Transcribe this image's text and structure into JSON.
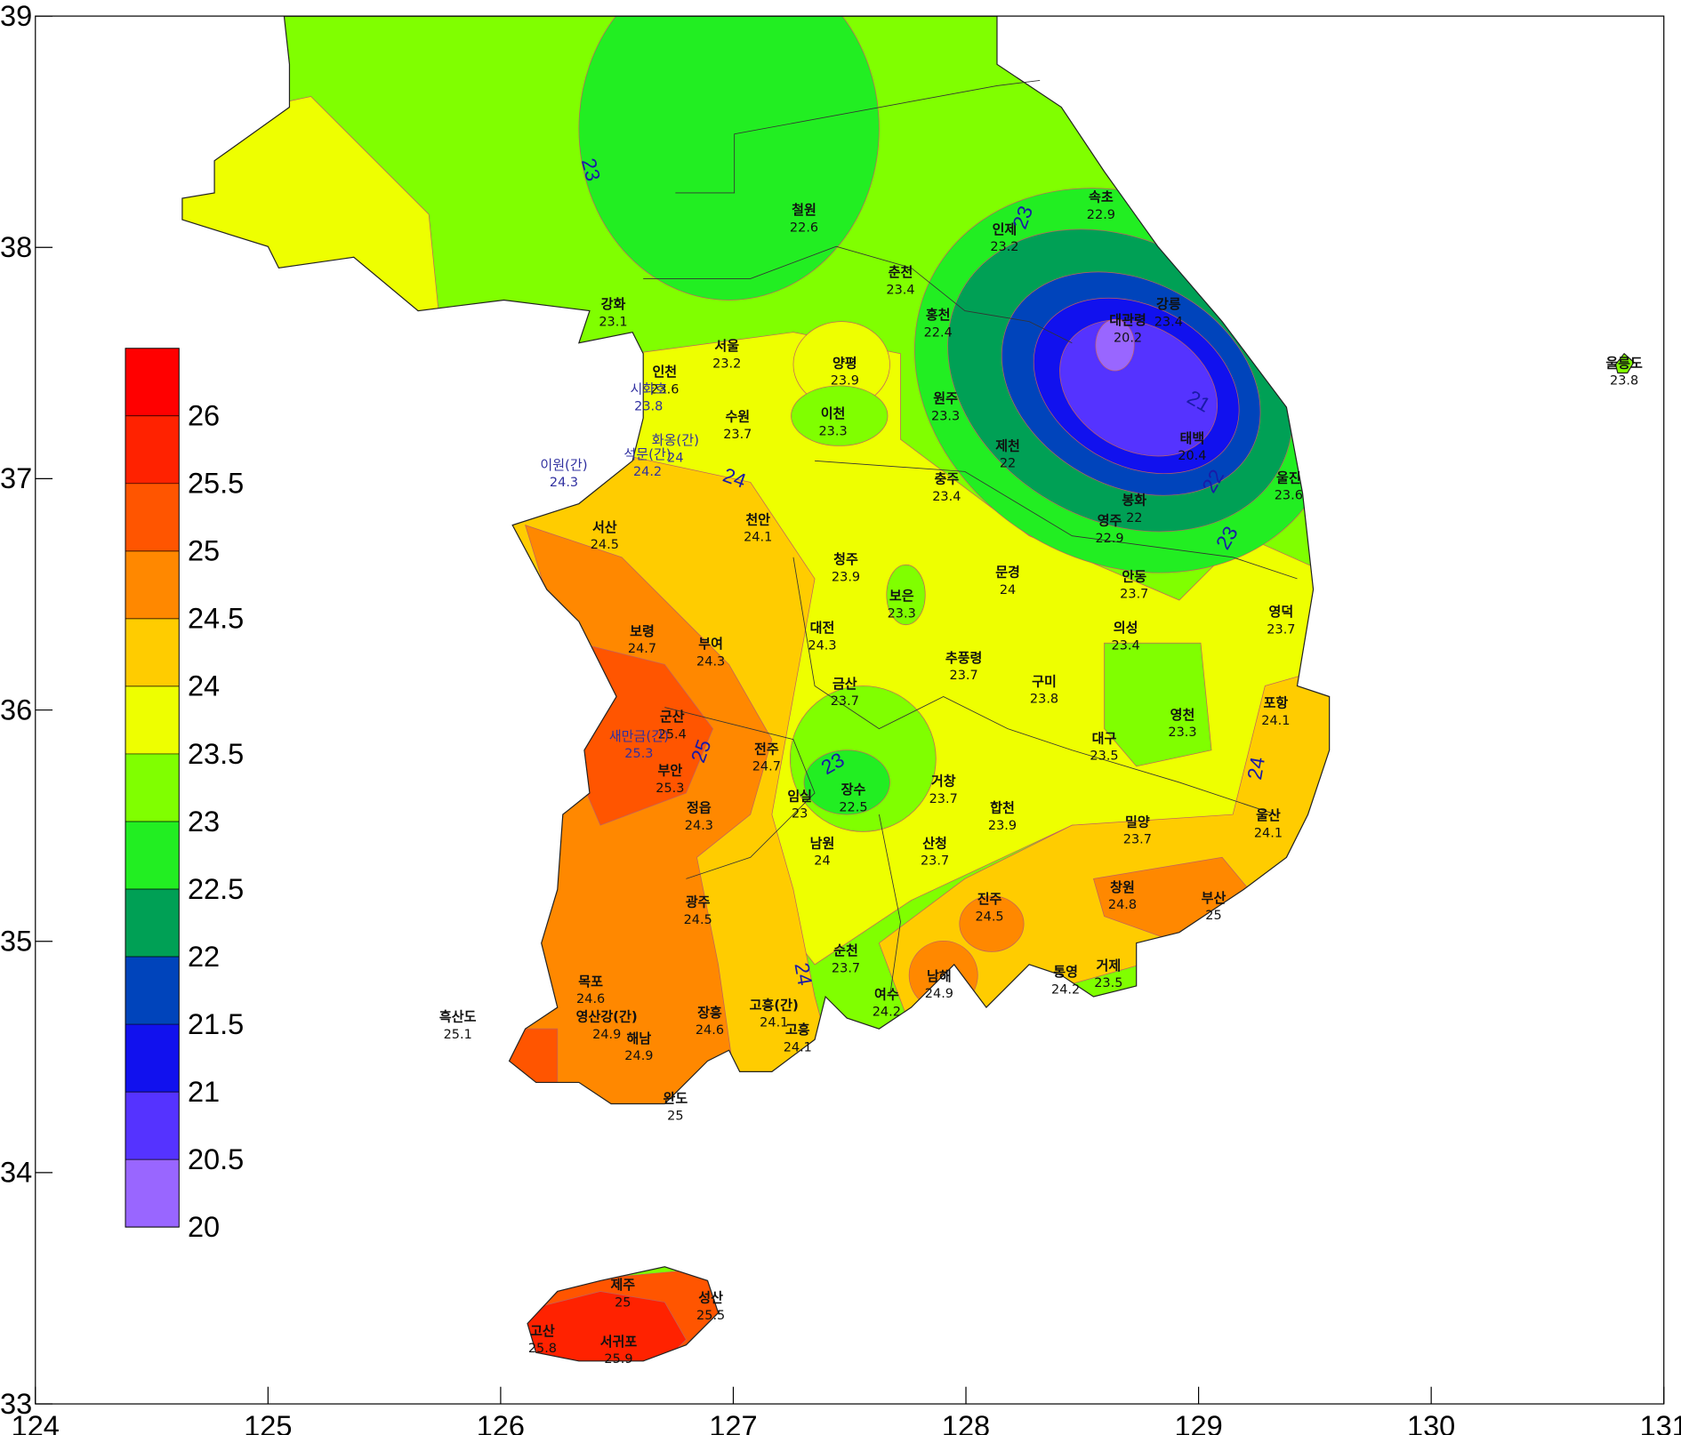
{
  "chart_data": {
    "type": "contour_map",
    "xlim": [
      124,
      131
    ],
    "ylim": [
      33,
      39
    ],
    "xticks": [
      124,
      125,
      126,
      127,
      128,
      129,
      130,
      131
    ],
    "yticks": [
      33,
      34,
      35,
      36,
      37,
      38,
      39
    ],
    "colorbar": {
      "ticks": [
        20,
        20.5,
        21,
        21.5,
        22,
        22.5,
        23,
        23.5,
        24,
        24.5,
        25,
        25.5,
        26
      ],
      "colors": [
        "#9966ff",
        "#5533ff",
        "#1111ee",
        "#0044bb",
        "#00a055",
        "#22ee22",
        "#80ff00",
        "#eeff00",
        "#ffcc00",
        "#ff8800",
        "#ff5500",
        "#ff2200",
        "#ff0000"
      ]
    },
    "contour_labels": [
      23,
      23,
      24,
      25,
      23,
      22,
      23,
      21,
      24,
      24
    ],
    "stations": [
      {
        "name": "철원",
        "value": 22.6
      },
      {
        "name": "속초",
        "value": 22.9
      },
      {
        "name": "인제",
        "value": 23.2
      },
      {
        "name": "춘천",
        "value": 23.4
      },
      {
        "name": "강화",
        "value": 23.1
      },
      {
        "name": "홍천",
        "value": 22.4
      },
      {
        "name": "대관령",
        "value": 20.2
      },
      {
        "name": "강릉",
        "value": 23.4
      },
      {
        "name": "서울",
        "value": 23.2
      },
      {
        "name": "양평",
        "value": 23.9
      },
      {
        "name": "인천",
        "value": 23.6
      },
      {
        "name": "울릉도",
        "value": 23.8
      },
      {
        "name": "시화호",
        "value": 23.8
      },
      {
        "name": "수원",
        "value": 23.7
      },
      {
        "name": "이천",
        "value": 23.3
      },
      {
        "name": "원주",
        "value": 23.3
      },
      {
        "name": "화옹(간)",
        "value": 24
      },
      {
        "name": "제천",
        "value": 22
      },
      {
        "name": "태백",
        "value": 20.4
      },
      {
        "name": "석문(간)",
        "value": 24.2
      },
      {
        "name": "이원(간)",
        "value": 24.3
      },
      {
        "name": "울진",
        "value": 23.6
      },
      {
        "name": "충주",
        "value": 23.4
      },
      {
        "name": "봉화",
        "value": 22
      },
      {
        "name": "천안",
        "value": 24.1
      },
      {
        "name": "영주",
        "value": 22.9
      },
      {
        "name": "서산",
        "value": 24.5
      },
      {
        "name": "청주",
        "value": 23.9
      },
      {
        "name": "문경",
        "value": 24
      },
      {
        "name": "보은",
        "value": 23.3
      },
      {
        "name": "안동",
        "value": 23.7
      },
      {
        "name": "영덕",
        "value": 23.7
      },
      {
        "name": "대전",
        "value": 24.3
      },
      {
        "name": "의성",
        "value": 23.4
      },
      {
        "name": "보령",
        "value": 24.7
      },
      {
        "name": "부여",
        "value": 24.3
      },
      {
        "name": "추풍령",
        "value": 23.7
      },
      {
        "name": "금산",
        "value": 23.7
      },
      {
        "name": "구미",
        "value": 23.8
      },
      {
        "name": "포항",
        "value": 24.1
      },
      {
        "name": "군산",
        "value": 25.4
      },
      {
        "name": "영천",
        "value": 23.3
      },
      {
        "name": "새만금(간)",
        "value": 25.3
      },
      {
        "name": "대구",
        "value": 23.5
      },
      {
        "name": "전주",
        "value": 24.7
      },
      {
        "name": "부안",
        "value": 25.3
      },
      {
        "name": "거창",
        "value": 23.7
      },
      {
        "name": "임실",
        "value": 23
      },
      {
        "name": "장수",
        "value": 22.5
      },
      {
        "name": "정읍",
        "value": 24.3
      },
      {
        "name": "합천",
        "value": 23.9
      },
      {
        "name": "밀양",
        "value": 23.7
      },
      {
        "name": "울산",
        "value": 24.1
      },
      {
        "name": "남원",
        "value": 24
      },
      {
        "name": "산청",
        "value": 23.7
      },
      {
        "name": "진주",
        "value": 24.5
      },
      {
        "name": "창원",
        "value": 24.8
      },
      {
        "name": "부산",
        "value": 25
      },
      {
        "name": "광주",
        "value": 24.5
      },
      {
        "name": "순천",
        "value": 23.7
      },
      {
        "name": "통영",
        "value": 24.2
      },
      {
        "name": "거제",
        "value": 23.5
      },
      {
        "name": "남해",
        "value": 24.9
      },
      {
        "name": "여수",
        "value": 24.2
      },
      {
        "name": "목포",
        "value": 24.6
      },
      {
        "name": "고흥(간)",
        "value": 24.1
      },
      {
        "name": "고흥",
        "value": 24.1
      },
      {
        "name": "장흥",
        "value": 24.6
      },
      {
        "name": "흑산도",
        "value": 25.1
      },
      {
        "name": "영산강(간)",
        "value": 24.9
      },
      {
        "name": "해남",
        "value": 24.9
      },
      {
        "name": "완도",
        "value": 25
      },
      {
        "name": "제주",
        "value": 25
      },
      {
        "name": "성산",
        "value": 25.5
      },
      {
        "name": "고산",
        "value": 25.8
      },
      {
        "name": "서귀포",
        "value": 25.9
      }
    ]
  }
}
